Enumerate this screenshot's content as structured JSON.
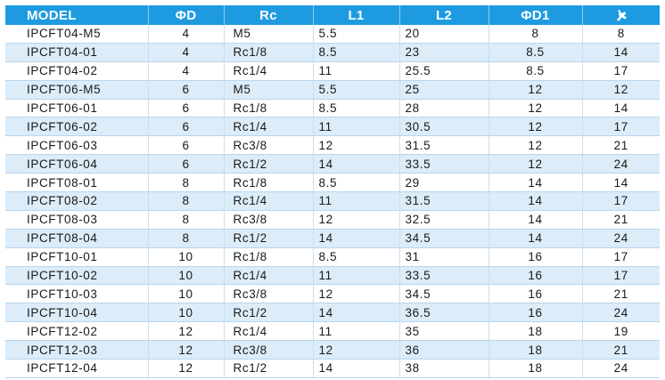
{
  "table": {
    "headers": {
      "model": "MODEL",
      "d": "ΦD",
      "rc": "Rc",
      "l1": "L1",
      "l2": "L2",
      "d1": "ΦD1",
      "hex_icon": "wrench-icon"
    },
    "rows": [
      [
        "IPCFT04-M5",
        "4",
        "M5",
        "5.5",
        "20",
        "8",
        "8"
      ],
      [
        "IPCFT04-01",
        "4",
        "Rc1/8",
        "8.5",
        "23",
        "8.5",
        "14"
      ],
      [
        "IPCFT04-02",
        "4",
        "Rc1/4",
        "11",
        "25.5",
        "8.5",
        "17"
      ],
      [
        "IPCFT06-M5",
        "6",
        "M5",
        "5.5",
        "25",
        "12",
        "12"
      ],
      [
        "IPCFT06-01",
        "6",
        "Rc1/8",
        "8.5",
        "28",
        "12",
        "14"
      ],
      [
        "IPCFT06-02",
        "6",
        "Rc1/4",
        "11",
        "30.5",
        "12",
        "17"
      ],
      [
        "IPCFT06-03",
        "6",
        "Rc3/8",
        "12",
        "31.5",
        "12",
        "21"
      ],
      [
        "IPCFT06-04",
        "6",
        "Rc1/2",
        "14",
        "33.5",
        "12",
        "24"
      ],
      [
        "IPCFT08-01",
        "8",
        "Rc1/8",
        "8.5",
        "29",
        "14",
        "14"
      ],
      [
        "IPCFT08-02",
        "8",
        "Rc1/4",
        "11",
        "31.5",
        "14",
        "17"
      ],
      [
        "IPCFT08-03",
        "8",
        "Rc3/8",
        "12",
        "32.5",
        "14",
        "21"
      ],
      [
        "IPCFT08-04",
        "8",
        "Rc1/2",
        "14",
        "34.5",
        "14",
        "24"
      ],
      [
        "IPCFT10-01",
        "10",
        "Rc1/8",
        "8.5",
        "31",
        "16",
        "17"
      ],
      [
        "IPCFT10-02",
        "10",
        "Rc1/4",
        "11",
        "33.5",
        "16",
        "17"
      ],
      [
        "IPCFT10-03",
        "10",
        "Rc3/8",
        "12",
        "34.5",
        "16",
        "21"
      ],
      [
        "IPCFT10-04",
        "10",
        "Rc1/2",
        "14",
        "36.5",
        "16",
        "24"
      ],
      [
        "IPCFT12-02",
        "12",
        "Rc1/4",
        "11",
        "35",
        "18",
        "19"
      ],
      [
        "IPCFT12-03",
        "12",
        "Rc3/8",
        "12",
        "36",
        "18",
        "21"
      ],
      [
        "IPCFT12-04",
        "12",
        "Rc1/2",
        "14",
        "38",
        "18",
        "24"
      ]
    ]
  },
  "colors": {
    "header_bg": "#1e9be0",
    "header_text": "#ffffff",
    "alt_row_bg": "#dcecf8",
    "row_bg": "#ffffff"
  }
}
